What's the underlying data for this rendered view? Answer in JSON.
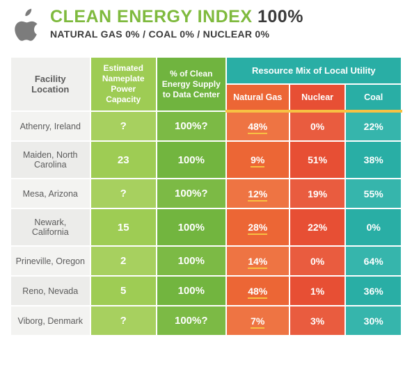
{
  "header": {
    "title_main": "CLEAN ENERGY INDEX",
    "title_pct": "100%",
    "subline": "NATURAL GAS 0%  /  COAL 0%  /  NUCLEAR 0%",
    "colors": {
      "accent_green": "#7fba3e",
      "text_dark": "#3a3a3a",
      "logo": "#7c7c7c"
    }
  },
  "table": {
    "headers": {
      "location": "Facility Location",
      "capacity": "Estimated Nameplate Power Capacity",
      "supply": "% of Clean Energy Supply to Data Center",
      "mix_group": "Resource Mix of Local Utility",
      "mix_gas": "Natural Gas",
      "mix_nuclear": "Nuclear",
      "mix_coal": "Coal"
    },
    "column_colors": {
      "location_bg": "#f0f0ee",
      "capacity_bg": "#9ecc54",
      "supply_bg": "#70b43f",
      "mix_header_bg": "#29aea5",
      "gas_bg": "#ec6635",
      "nuclear_bg": "#e74f34",
      "coal_bg": "#29aea5",
      "underline": "#f7c143"
    },
    "rows": [
      {
        "location": "Athenry, Ireland",
        "capacity": "?",
        "supply": "100%?",
        "gas": "48%",
        "nuclear": "0%",
        "coal": "22%"
      },
      {
        "location": "Maiden, North Carolina",
        "capacity": "23",
        "supply": "100%",
        "gas": "9%",
        "nuclear": "51%",
        "coal": "38%"
      },
      {
        "location": "Mesa, Arizona",
        "capacity": "?",
        "supply": "100%?",
        "gas": "12%",
        "nuclear": "19%",
        "coal": "55%"
      },
      {
        "location": "Newark, California",
        "capacity": "15",
        "supply": "100%",
        "gas": "28%",
        "nuclear": "22%",
        "coal": "0%"
      },
      {
        "location": "Prineville, Oregon",
        "capacity": "2",
        "supply": "100%",
        "gas": "14%",
        "nuclear": "0%",
        "coal": "64%"
      },
      {
        "location": "Reno, Nevada",
        "capacity": "5",
        "supply": "100%",
        "gas": "48%",
        "nuclear": "1%",
        "coal": "36%"
      },
      {
        "location": "Viborg, Denmark",
        "capacity": "?",
        "supply": "100%?",
        "gas": "7%",
        "nuclear": "3%",
        "coal": "30%"
      }
    ]
  }
}
